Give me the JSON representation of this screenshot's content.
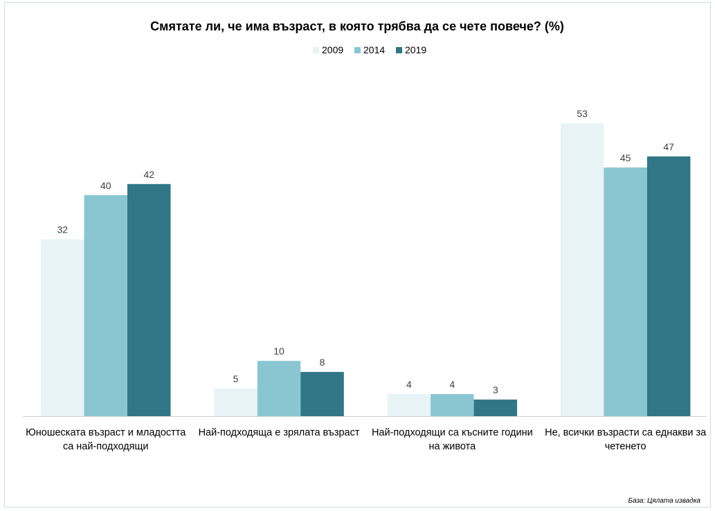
{
  "chart_data": {
    "type": "bar",
    "title": "Смятате ли, че има възраст, в която трябва да се чете повече? (%)",
    "categories": [
      [
        "Юношеската възраст и младостта",
        "са най-подходящи"
      ],
      [
        "Най-подходяща е зрялата възраст"
      ],
      [
        "Най-подходящи са късните години",
        "на живота"
      ],
      [
        "Не, всички възрасти са еднакви за",
        "четенето"
      ]
    ],
    "series": [
      {
        "name": "2009",
        "color": "#e8f3f6",
        "values": [
          32,
          5,
          4,
          53
        ]
      },
      {
        "name": "2014",
        "color": "#8ac6d1",
        "values": [
          40,
          10,
          4,
          45
        ]
      },
      {
        "name": "2019",
        "color": "#307686",
        "values": [
          42,
          8,
          3,
          47
        ]
      }
    ],
    "ylim": [
      0,
      53
    ],
    "legend_position": "top-center",
    "grid": false,
    "xlabel": "",
    "ylabel": ""
  },
  "footnote": "База: Цялата извадка"
}
